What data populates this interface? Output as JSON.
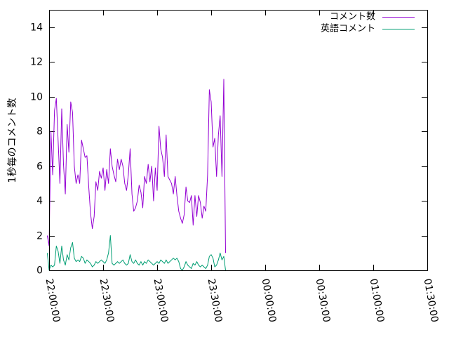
{
  "chart_data": {
    "type": "line",
    "title": "",
    "xlabel": "",
    "ylabel": "1秒毎のコメント数",
    "xlim": [
      "22:00:00",
      "01:30:00"
    ],
    "ylim": [
      0,
      15
    ],
    "x_tick_labels": [
      "22:00:00",
      "22:30:00",
      "23:00:00",
      "23:30:00",
      "00:00:00",
      "00:30:00",
      "01:00:00",
      "01:30:00"
    ],
    "y_tick_labels": [
      "0",
      "2",
      "4",
      "6",
      "8",
      "10",
      "12",
      "14"
    ],
    "y_ticks": [
      0,
      2,
      4,
      6,
      8,
      10,
      12,
      14
    ],
    "grid": false,
    "legend_position": "top-right",
    "series": [
      {
        "name": "コメント数",
        "color": "#9400d3",
        "points": [
          [
            "21:59:00",
            2.0
          ],
          [
            "22:00:00",
            1.4
          ],
          [
            "22:01:00",
            8.0
          ],
          [
            "22:02:00",
            5.5
          ],
          [
            "22:03:00",
            9.2
          ],
          [
            "22:04:00",
            9.9
          ],
          [
            "22:05:00",
            7.5
          ],
          [
            "22:06:00",
            5.0
          ],
          [
            "22:07:00",
            9.3
          ],
          [
            "22:08:00",
            6.1
          ],
          [
            "22:09:00",
            4.4
          ],
          [
            "22:10:00",
            8.4
          ],
          [
            "22:11:00",
            6.8
          ],
          [
            "22:12:00",
            9.7
          ],
          [
            "22:13:00",
            9.1
          ],
          [
            "22:14:00",
            6.0
          ],
          [
            "22:15:00",
            5.0
          ],
          [
            "22:16:00",
            5.5
          ],
          [
            "22:17:00",
            5.0
          ],
          [
            "22:18:00",
            7.5
          ],
          [
            "22:19:00",
            7.0
          ],
          [
            "22:20:00",
            6.5
          ],
          [
            "22:21:00",
            6.6
          ],
          [
            "22:22:00",
            4.8
          ],
          [
            "22:23:00",
            3.3
          ],
          [
            "22:24:00",
            2.4
          ],
          [
            "22:25:00",
            3.1
          ],
          [
            "22:26:00",
            5.1
          ],
          [
            "22:27:00",
            4.6
          ],
          [
            "22:28:00",
            5.7
          ],
          [
            "22:29:00",
            5.3
          ],
          [
            "22:30:00",
            5.9
          ],
          [
            "22:31:00",
            4.6
          ],
          [
            "22:32:00",
            5.8
          ],
          [
            "22:33:00",
            5.0
          ],
          [
            "22:34:00",
            7.0
          ],
          [
            "22:35:00",
            6.0
          ],
          [
            "22:36:00",
            5.5
          ],
          [
            "22:37:00",
            5.1
          ],
          [
            "22:38:00",
            6.4
          ],
          [
            "22:39:00",
            5.8
          ],
          [
            "22:40:00",
            6.4
          ],
          [
            "22:41:00",
            6.0
          ],
          [
            "22:42:00",
            5.0
          ],
          [
            "22:43:00",
            4.6
          ],
          [
            "22:44:00",
            5.5
          ],
          [
            "22:45:00",
            7.0
          ],
          [
            "22:46:00",
            4.4
          ],
          [
            "22:47:00",
            3.4
          ],
          [
            "22:48:00",
            3.6
          ],
          [
            "22:49:00",
            4.0
          ],
          [
            "22:50:00",
            4.9
          ],
          [
            "22:51:00",
            4.5
          ],
          [
            "22:52:00",
            3.6
          ],
          [
            "22:53:00",
            5.4
          ],
          [
            "22:54:00",
            5.0
          ],
          [
            "22:55:00",
            6.1
          ],
          [
            "22:56:00",
            5.1
          ],
          [
            "22:57:00",
            6.0
          ],
          [
            "22:58:00",
            4.0
          ],
          [
            "22:59:00",
            5.9
          ],
          [
            "23:00:00",
            4.6
          ],
          [
            "23:01:00",
            8.3
          ],
          [
            "23:02:00",
            7.0
          ],
          [
            "23:03:00",
            6.5
          ],
          [
            "23:04:00",
            5.4
          ],
          [
            "23:05:00",
            7.8
          ],
          [
            "23:06:00",
            5.4
          ],
          [
            "23:07:00",
            5.2
          ],
          [
            "23:08:00",
            5.0
          ],
          [
            "23:09:00",
            4.4
          ],
          [
            "23:10:00",
            5.4
          ],
          [
            "23:11:00",
            4.3
          ],
          [
            "23:12:00",
            3.4
          ],
          [
            "23:13:00",
            3.0
          ],
          [
            "23:14:00",
            2.7
          ],
          [
            "23:15:00",
            3.2
          ],
          [
            "23:16:00",
            4.8
          ],
          [
            "23:17:00",
            4.0
          ],
          [
            "23:18:00",
            3.9
          ],
          [
            "23:19:00",
            4.3
          ],
          [
            "23:20:00",
            2.6
          ],
          [
            "23:21:00",
            4.3
          ],
          [
            "23:22:00",
            3.1
          ],
          [
            "23:23:00",
            4.3
          ],
          [
            "23:24:00",
            3.9
          ],
          [
            "23:25:00",
            3.0
          ],
          [
            "23:26:00",
            3.7
          ],
          [
            "23:27:00",
            3.4
          ],
          [
            "23:28:00",
            5.5
          ],
          [
            "23:29:00",
            10.4
          ],
          [
            "23:30:00",
            9.7
          ],
          [
            "23:31:00",
            7.1
          ],
          [
            "23:32:00",
            7.6
          ],
          [
            "23:33:00",
            5.4
          ],
          [
            "23:34:00",
            7.8
          ],
          [
            "23:35:00",
            8.9
          ],
          [
            "23:36:00",
            5.4
          ],
          [
            "23:37:00",
            11.0
          ],
          [
            "23:38:00",
            1.0
          ]
        ]
      },
      {
        "name": "英語コメント",
        "color": "#009e73",
        "points": [
          [
            "21:59:00",
            1.0
          ],
          [
            "22:00:00",
            0.0
          ],
          [
            "22:01:00",
            0.3
          ],
          [
            "22:02:00",
            0.2
          ],
          [
            "22:03:00",
            0.3
          ],
          [
            "22:04:00",
            1.4
          ],
          [
            "22:05:00",
            1.1
          ],
          [
            "22:06:00",
            0.4
          ],
          [
            "22:07:00",
            1.4
          ],
          [
            "22:08:00",
            0.6
          ],
          [
            "22:09:00",
            0.3
          ],
          [
            "22:10:00",
            0.9
          ],
          [
            "22:11:00",
            0.6
          ],
          [
            "22:12:00",
            1.3
          ],
          [
            "22:13:00",
            1.6
          ],
          [
            "22:14:00",
            0.7
          ],
          [
            "22:15:00",
            0.5
          ],
          [
            "22:16:00",
            0.6
          ],
          [
            "22:17:00",
            0.5
          ],
          [
            "22:18:00",
            0.8
          ],
          [
            "22:19:00",
            0.7
          ],
          [
            "22:20:00",
            0.4
          ],
          [
            "22:21:00",
            0.6
          ],
          [
            "22:22:00",
            0.5
          ],
          [
            "22:23:00",
            0.4
          ],
          [
            "22:24:00",
            0.2
          ],
          [
            "22:25:00",
            0.3
          ],
          [
            "22:26:00",
            0.5
          ],
          [
            "22:27:00",
            0.4
          ],
          [
            "22:28:00",
            0.5
          ],
          [
            "22:29:00",
            0.6
          ],
          [
            "22:30:00",
            0.5
          ],
          [
            "22:31:00",
            0.4
          ],
          [
            "22:32:00",
            0.6
          ],
          [
            "22:33:00",
            1.0
          ],
          [
            "22:34:00",
            2.0
          ],
          [
            "22:35:00",
            0.4
          ],
          [
            "22:36:00",
            0.3
          ],
          [
            "22:37:00",
            0.4
          ],
          [
            "22:38:00",
            0.5
          ],
          [
            "22:39:00",
            0.4
          ],
          [
            "22:40:00",
            0.5
          ],
          [
            "22:41:00",
            0.6
          ],
          [
            "22:42:00",
            0.4
          ],
          [
            "22:43:00",
            0.3
          ],
          [
            "22:44:00",
            0.4
          ],
          [
            "22:45:00",
            0.9
          ],
          [
            "22:46:00",
            0.5
          ],
          [
            "22:47:00",
            0.4
          ],
          [
            "22:48:00",
            0.6
          ],
          [
            "22:49:00",
            0.4
          ],
          [
            "22:50:00",
            0.3
          ],
          [
            "22:51:00",
            0.5
          ],
          [
            "22:52:00",
            0.3
          ],
          [
            "22:53:00",
            0.5
          ],
          [
            "22:54:00",
            0.4
          ],
          [
            "22:55:00",
            0.6
          ],
          [
            "22:56:00",
            0.5
          ],
          [
            "22:57:00",
            0.4
          ],
          [
            "22:58:00",
            0.3
          ],
          [
            "22:59:00",
            0.4
          ],
          [
            "23:00:00",
            0.5
          ],
          [
            "23:01:00",
            0.4
          ],
          [
            "23:02:00",
            0.6
          ],
          [
            "23:03:00",
            0.5
          ],
          [
            "23:04:00",
            0.4
          ],
          [
            "23:05:00",
            0.6
          ],
          [
            "23:06:00",
            0.4
          ],
          [
            "23:07:00",
            0.5
          ],
          [
            "23:08:00",
            0.6
          ],
          [
            "23:09:00",
            0.7
          ],
          [
            "23:10:00",
            0.6
          ],
          [
            "23:11:00",
            0.7
          ],
          [
            "23:12:00",
            0.5
          ],
          [
            "23:13:00",
            0.1
          ],
          [
            "23:14:00",
            0.0
          ],
          [
            "23:15:00",
            0.2
          ],
          [
            "23:16:00",
            0.5
          ],
          [
            "23:17:00",
            0.3
          ],
          [
            "23:18:00",
            0.2
          ],
          [
            "23:19:00",
            0.1
          ],
          [
            "23:20:00",
            0.4
          ],
          [
            "23:21:00",
            0.3
          ],
          [
            "23:22:00",
            0.5
          ],
          [
            "23:23:00",
            0.3
          ],
          [
            "23:24:00",
            0.2
          ],
          [
            "23:25:00",
            0.3
          ],
          [
            "23:26:00",
            0.2
          ],
          [
            "23:27:00",
            0.1
          ],
          [
            "23:28:00",
            0.3
          ],
          [
            "23:29:00",
            0.8
          ],
          [
            "23:30:00",
            0.9
          ],
          [
            "23:31:00",
            0.7
          ],
          [
            "23:32:00",
            0.2
          ],
          [
            "23:33:00",
            0.3
          ],
          [
            "23:34:00",
            0.6
          ],
          [
            "23:35:00",
            1.0
          ],
          [
            "23:36:00",
            0.6
          ],
          [
            "23:37:00",
            0.8
          ],
          [
            "23:38:00",
            0.0
          ]
        ]
      }
    ]
  }
}
